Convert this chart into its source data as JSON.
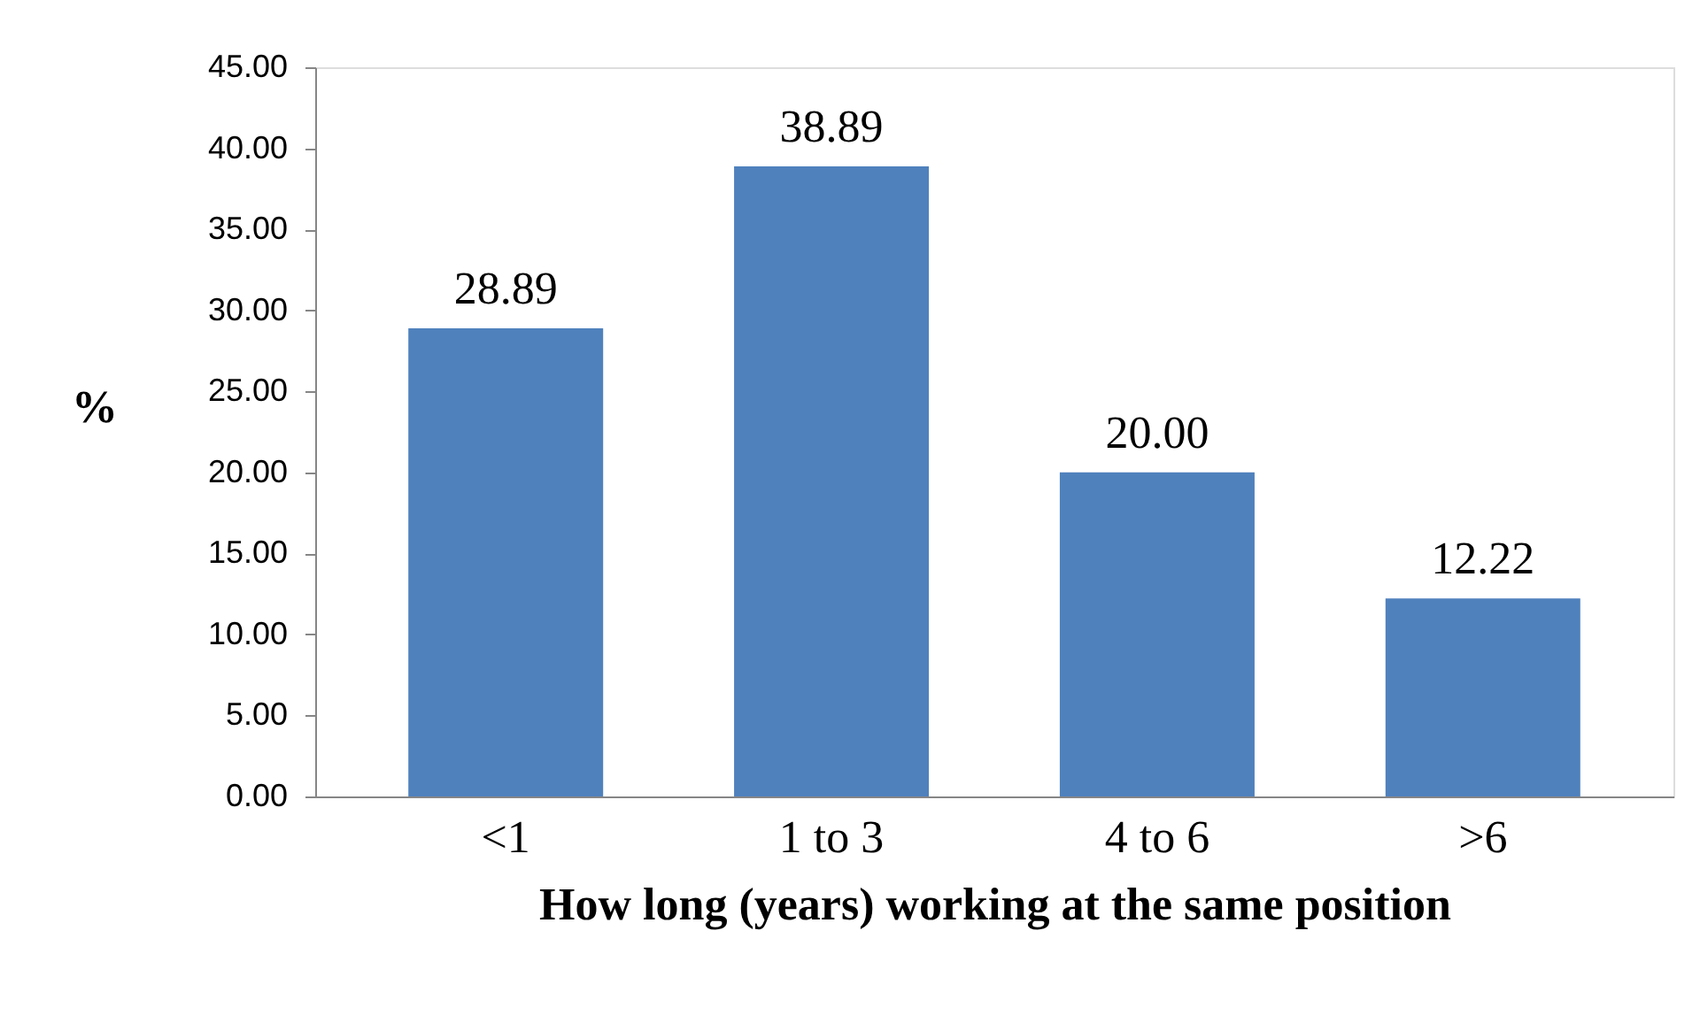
{
  "chart_data": {
    "type": "bar",
    "xlabel": "How long (years) working at the same position",
    "ylabel": "%",
    "categories": [
      "<1",
      "1 to 3",
      "4 to 6",
      ">6"
    ],
    "values": [
      28.89,
      38.89,
      20.0,
      12.22
    ],
    "color": "#4f81bd",
    "value_labels": [
      "28.89",
      "38.89",
      "20.00",
      "12.22"
    ],
    "grid": false,
    "ylim": [
      0,
      45
    ],
    "yticks": [
      {
        "value": 0,
        "label": "0.00"
      },
      {
        "value": 5,
        "label": "5.00"
      },
      {
        "value": 10,
        "label": "10.00"
      },
      {
        "value": 15,
        "label": "15.00"
      },
      {
        "value": 20,
        "label": "20.00"
      },
      {
        "value": 25,
        "label": "25.00"
      },
      {
        "value": 30,
        "label": "30.00"
      },
      {
        "value": 35,
        "label": "35.00"
      },
      {
        "value": 40,
        "label": "40.00"
      },
      {
        "value": 45,
        "label": "45.00"
      }
    ]
  }
}
